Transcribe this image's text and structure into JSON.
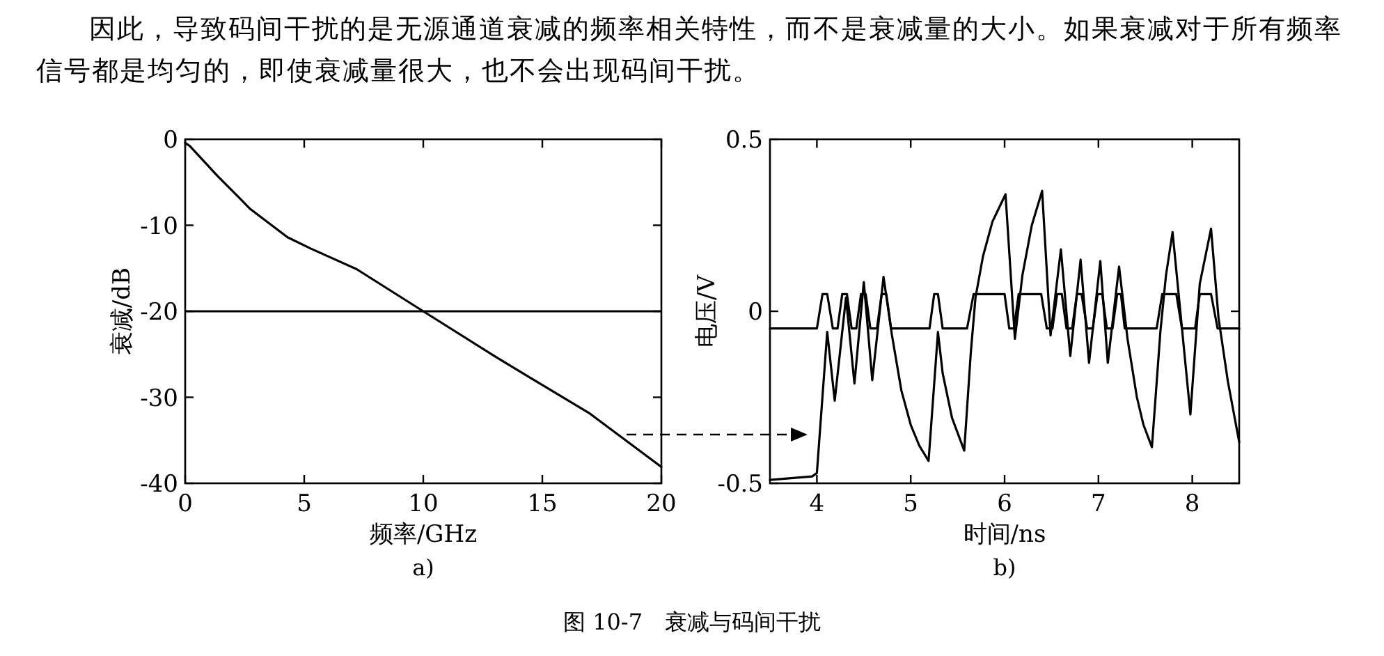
{
  "chart_data": [
    {
      "type": "line",
      "xlabel": "频率/GHz",
      "ylabel": "衰减/dB",
      "xlim": [
        0,
        20
      ],
      "ylim": [
        -40,
        0
      ],
      "xticks": [
        0,
        5,
        10,
        15,
        20
      ],
      "yticks": [
        0,
        -10,
        -20,
        -30,
        -40
      ],
      "series": [
        {
          "color": "#000000",
          "x": [
            0,
            0.2,
            1.37,
            2.34,
            2.73,
            4.3,
            5.27,
            7.2,
            10,
            13.1,
            17,
            20
          ],
          "values": [
            -0.4,
            -0.8,
            -4.3,
            -7.0,
            -8.1,
            -11.4,
            -12.7,
            -15.1,
            -20,
            -25.4,
            -31.9,
            -38.1
          ]
        }
      ],
      "ref_lines": [
        {
          "axis": "y",
          "value": -20,
          "color": "#000000"
        }
      ],
      "annotations": [
        "因此，导致码间干扰的是无源通道衰减的频率相关特性，而不是衰减量的大小。如果衰减对于所有频率信号都是均匀的，即使衰减量很大，也不会出现码间干扰。",
        "a)",
        "图 10-7　衰减与码间干扰"
      ]
    },
    {
      "type": "line",
      "xlabel": "时间/ns",
      "ylabel": "电压/V",
      "xlim": [
        3.5,
        8.5
      ],
      "ylim": [
        -0.5,
        0.5
      ],
      "xticks": [
        4,
        5,
        6,
        7,
        8
      ],
      "yticks": [
        0.5,
        0,
        -0.5
      ],
      "series": [
        {
          "color": "#000000",
          "x": [
            3.5,
            4.0,
            4.06,
            4.11,
            4.17,
            4.22,
            4.27,
            4.32,
            4.37,
            4.42,
            4.47,
            4.52,
            4.57,
            4.64,
            4.69,
            4.74,
            4.79,
            5.2,
            5.25,
            5.29,
            5.34,
            5.6,
            5.67,
            6.0,
            6.05,
            6.1,
            6.15,
            6.39,
            6.45,
            6.51,
            6.56,
            6.61,
            6.66,
            6.72,
            6.77,
            6.82,
            6.88,
            6.94,
            6.99,
            7.04,
            7.09,
            7.15,
            7.2,
            7.24,
            7.28,
            7.62,
            7.68,
            7.83,
            7.89,
            8.03,
            8.08,
            8.2,
            8.27,
            8.5
          ],
          "values": [
            -0.05,
            -0.05,
            0.05,
            0.05,
            -0.05,
            -0.05,
            0.05,
            0.05,
            -0.05,
            -0.05,
            0.05,
            0.05,
            -0.05,
            -0.05,
            0.05,
            0.05,
            -0.05,
            -0.05,
            0.05,
            0.05,
            -0.05,
            -0.05,
            0.05,
            0.05,
            -0.05,
            -0.05,
            0.05,
            0.05,
            -0.05,
            -0.05,
            0.05,
            0.05,
            -0.05,
            -0.05,
            0.05,
            0.05,
            -0.05,
            -0.05,
            0.05,
            0.05,
            -0.05,
            -0.05,
            0.05,
            0.05,
            -0.05,
            -0.05,
            0.05,
            0.05,
            -0.05,
            -0.05,
            0.05,
            0.05,
            -0.05,
            -0.05
          ]
        },
        {
          "color": "#000000",
          "x": [
            3.5,
            3.95,
            4.0,
            4.11,
            4.19,
            4.31,
            4.4,
            4.5,
            4.59,
            4.71,
            4.8,
            4.9,
            5.0,
            5.09,
            5.19,
            5.29,
            5.34,
            5.44,
            5.57,
            5.64,
            5.69,
            5.77,
            5.87,
            6.01,
            6.11,
            6.19,
            6.29,
            6.4,
            6.49,
            6.6,
            6.7,
            6.81,
            6.9,
            7.02,
            7.1,
            7.22,
            7.31,
            7.41,
            7.48,
            7.57,
            7.66,
            7.72,
            7.79,
            7.98,
            8.08,
            8.2,
            8.28,
            8.38,
            8.5
          ],
          "values": [
            -0.49,
            -0.48,
            -0.47,
            -0.06,
            -0.26,
            0.04,
            -0.21,
            0.085,
            -0.2,
            0.1,
            -0.07,
            -0.23,
            -0.33,
            -0.39,
            -0.435,
            -0.06,
            -0.18,
            -0.31,
            -0.405,
            -0.12,
            0.04,
            0.16,
            0.26,
            0.34,
            -0.08,
            0.105,
            0.25,
            0.35,
            -0.07,
            0.18,
            -0.13,
            0.15,
            -0.15,
            0.146,
            -0.15,
            0.13,
            -0.08,
            -0.25,
            -0.33,
            -0.395,
            -0.06,
            0.105,
            0.23,
            -0.3,
            0.08,
            0.24,
            -0.02,
            -0.205,
            -0.38
          ]
        }
      ],
      "annotations": [
        "b)"
      ]
    }
  ]
}
